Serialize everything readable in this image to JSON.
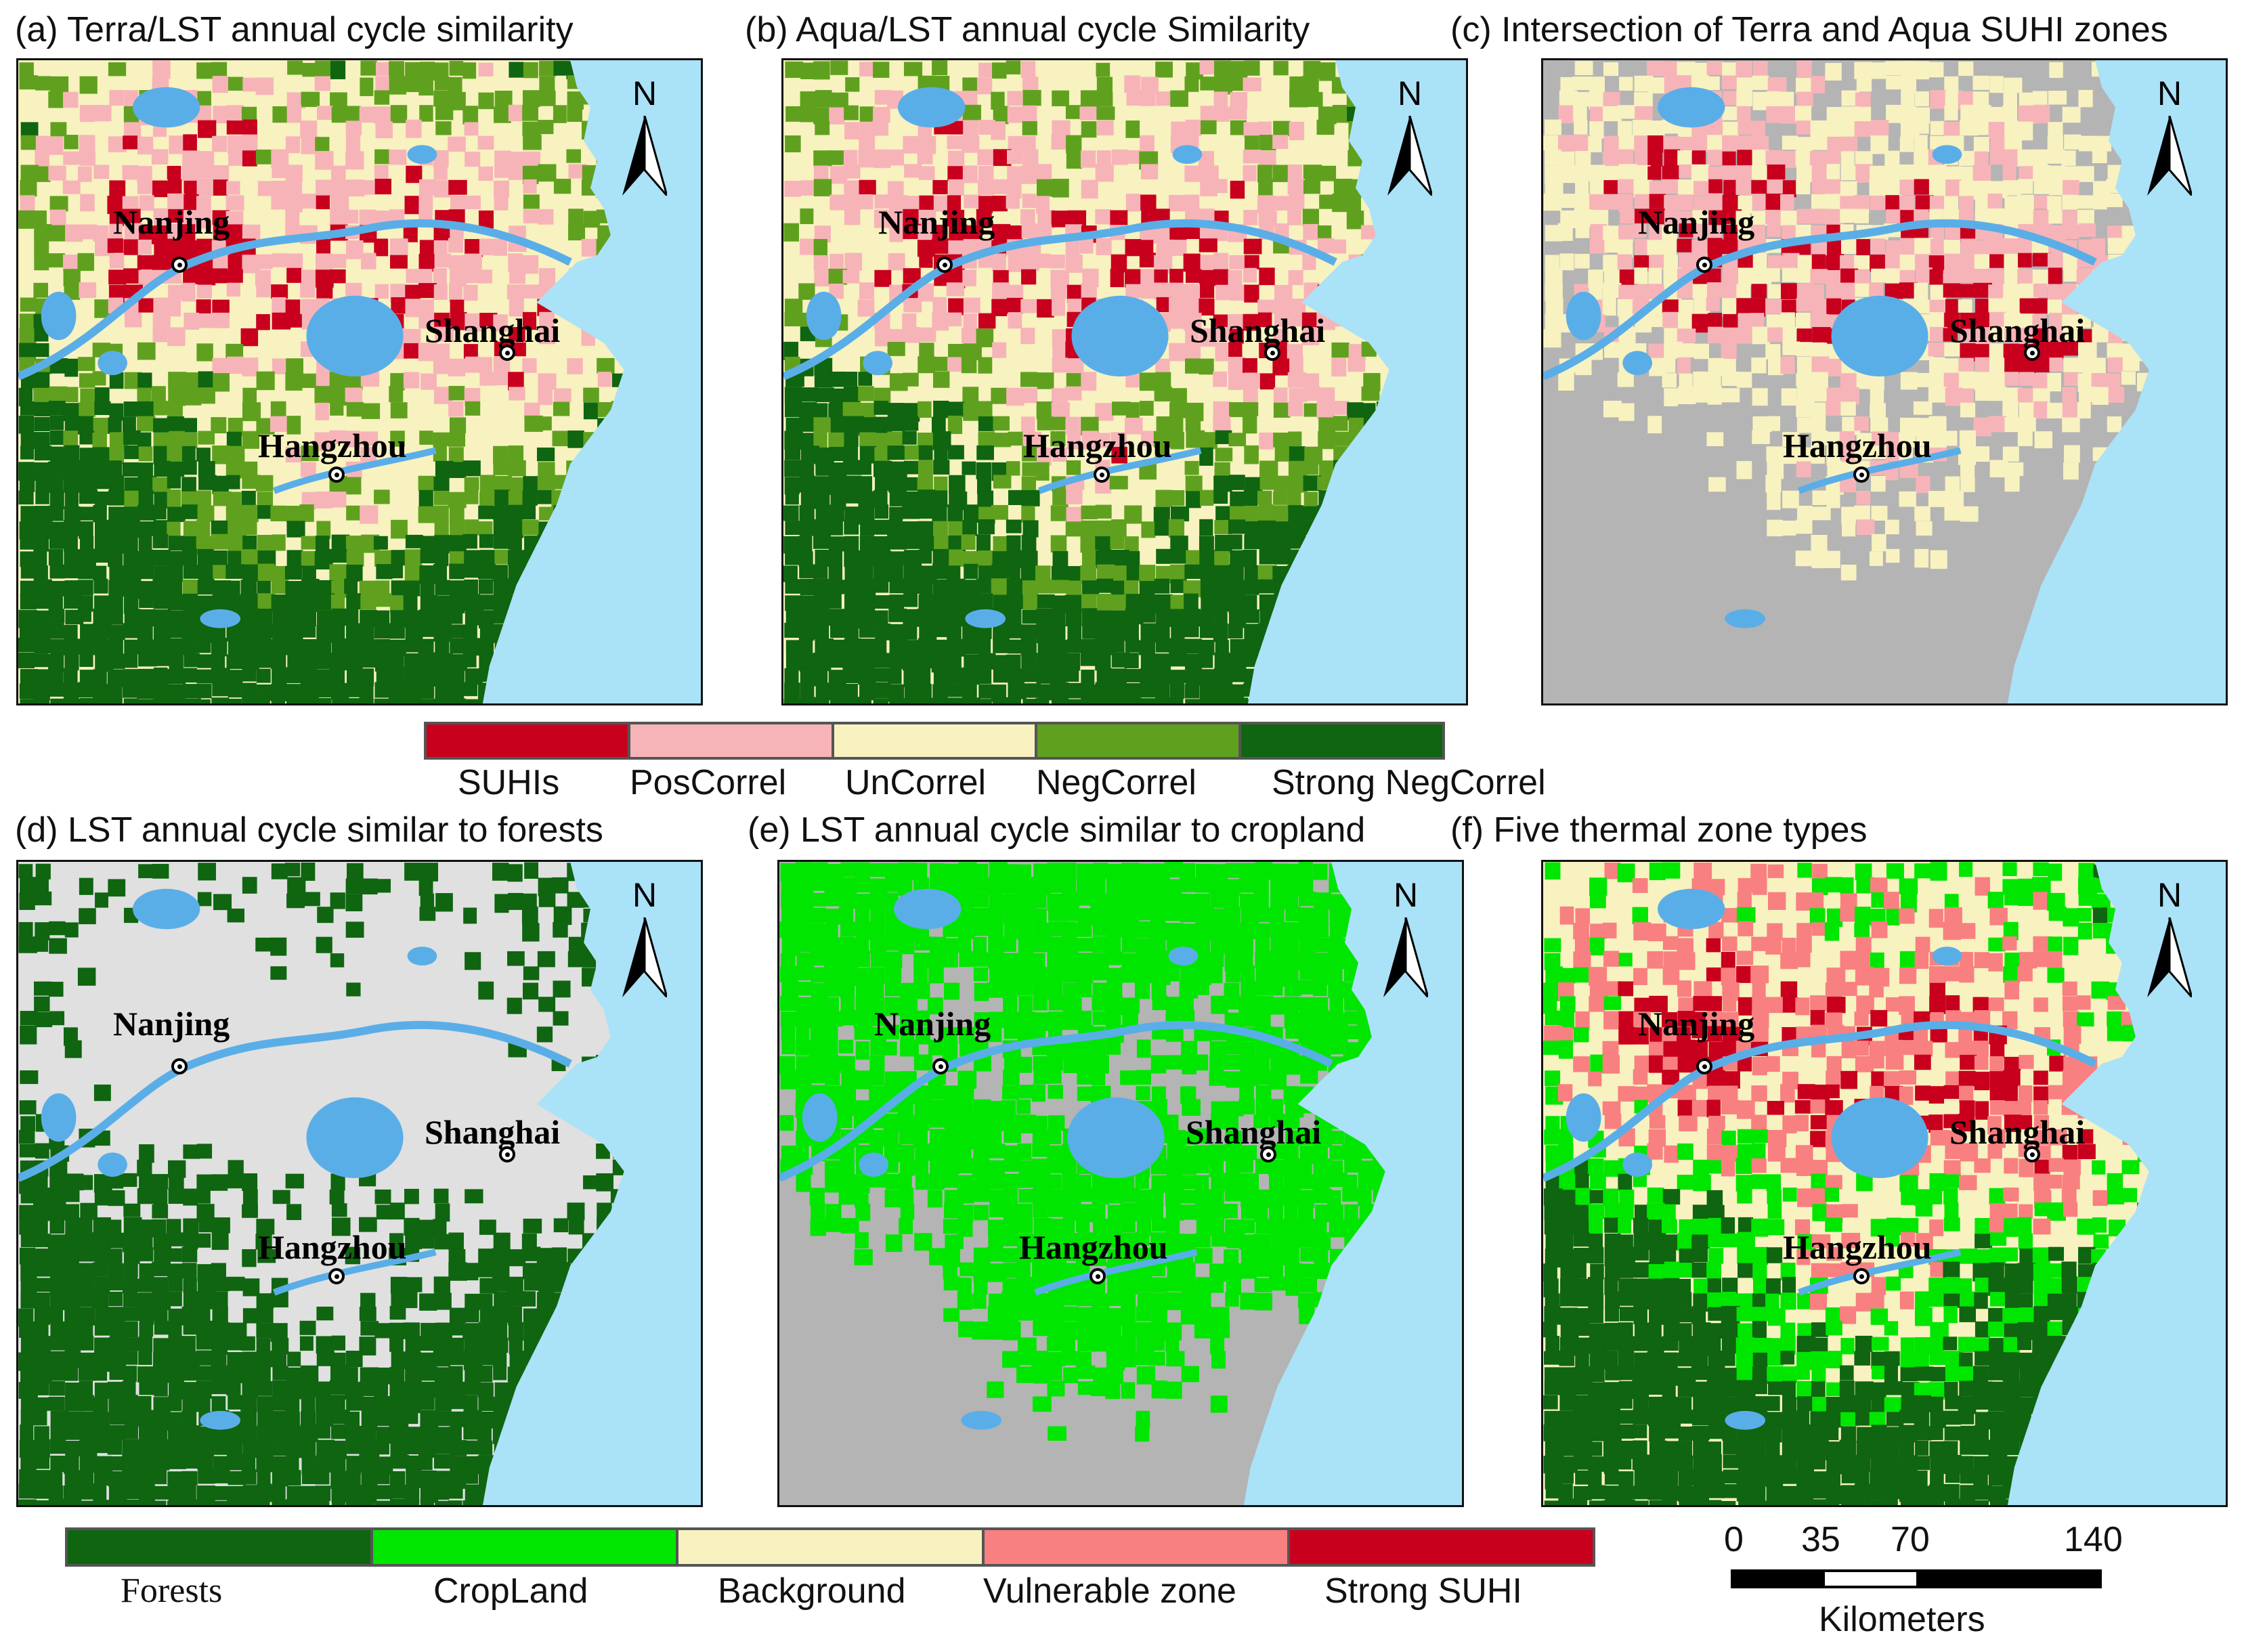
{
  "panels": [
    {
      "id": "a",
      "title": "(a) Terra/LST annual cycle similarity",
      "base": "#f7f2c0",
      "water": "#5aaee8",
      "sea": "#aae2f8",
      "layers": [
        "#c8001e",
        "#f7b4b8",
        "#f7f2c0",
        "#5fa11e",
        "#0f6510"
      ]
    },
    {
      "id": "b",
      "title": "(b) Aqua/LST annual cycle Similarity",
      "base": "#f7f2c0",
      "water": "#5aaee8",
      "sea": "#aae2f8",
      "layers": [
        "#c8001e",
        "#f7b4b8",
        "#f7f2c0",
        "#5fa11e",
        "#0f6510"
      ]
    },
    {
      "id": "c",
      "title": "(c) Intersection of Terra and Aqua SUHI zones",
      "base": "#b4b4b4",
      "water": "#5aaee8",
      "sea": "#aae2f8",
      "layers": [
        "#c8001e",
        "#f7b4b8",
        "#f7f2c0",
        "#b4b4b4",
        "#b4b4b4"
      ]
    },
    {
      "id": "d",
      "title": "(d) LST annual cycle similar to forests",
      "base": "#e0e0e0",
      "water": "#5aaee8",
      "sea": "#aae2f8",
      "layers": [
        "#e0e0e0",
        "#e0e0e0",
        "#e0e0e0",
        "#0f6510",
        "#0f6510"
      ]
    },
    {
      "id": "e",
      "title": "(e) LST annual cycle similar to cropland",
      "base": "#b4b4b4",
      "water": "#5aaee8",
      "sea": "#aae2f8",
      "layers": [
        "#b4b4b4",
        "#00e600",
        "#00e600",
        "#00e600",
        "#b4b4b4"
      ]
    },
    {
      "id": "f",
      "title": "(f) Five thermal zone types",
      "base": "#f7f2c0",
      "water": "#5aaee8",
      "sea": "#aae2f8",
      "layers": [
        "#c8001e",
        "#f88080",
        "#f7f2c0",
        "#00e600",
        "#0f6510"
      ]
    }
  ],
  "cities": [
    {
      "name": "Nanjing"
    },
    {
      "name": "Shanghai"
    },
    {
      "name": "Hangzhou"
    }
  ],
  "north_label": "N",
  "legend_top": {
    "colors": [
      "#c8001e",
      "#f7b4b8",
      "#f7f2c0",
      "#5fa11e",
      "#0f6510"
    ],
    "labels": [
      "SUHIs",
      "PosCorrel",
      "UnCorrel",
      "NegCorrel",
      "Strong NegCorrel"
    ]
  },
  "legend_bottom": {
    "colors": [
      "#0f6510",
      "#00e600",
      "#f7f2c0",
      "#f88080",
      "#c8001e"
    ],
    "labels": [
      "Forests",
      "CropLand",
      "Background",
      "Vulnerable zone",
      "Strong SUHI"
    ]
  },
  "scale": {
    "ticks": [
      "0",
      "35",
      "70",
      "140"
    ],
    "unit": "Kilometers"
  }
}
